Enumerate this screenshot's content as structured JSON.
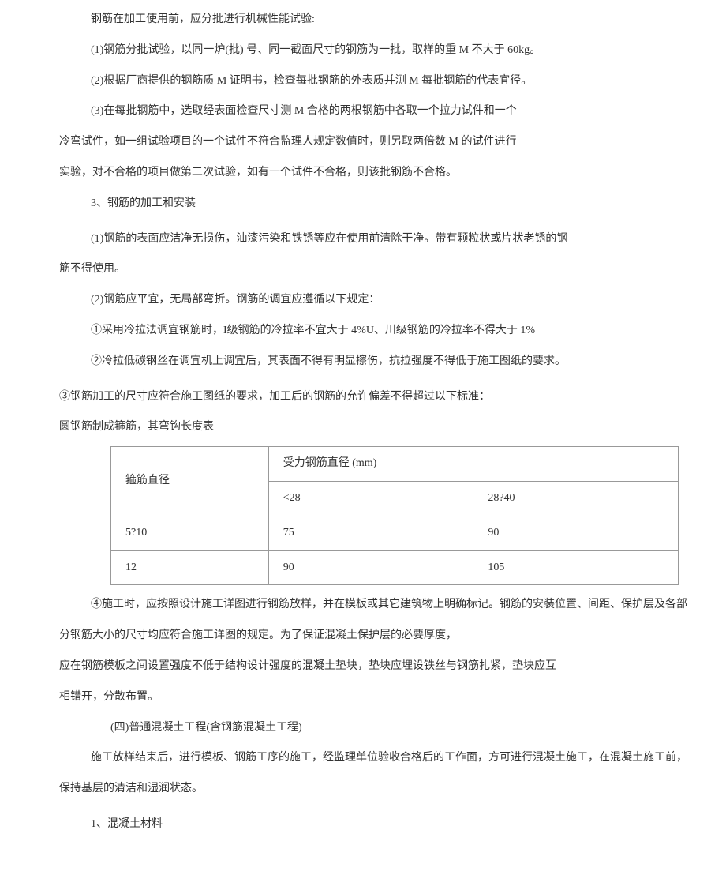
{
  "p1": "钢筋在加工使用前，应分批进行机械性能试验:",
  "p2": "(1)钢筋分批试验，以同一炉(批) 号、同一截面尺寸的钢筋为一批，取样的重 M 不大于 60kg。",
  "p3": "(2)根据厂商提供的钢筋质 M 证明书，检查每批钢筋的外表质并测 M 每批钢筋的代表宜径。",
  "p4": "(3)在每批钢筋中，选取经表面检查尺寸测 M 合格的两根钢筋中各取一个拉力试件和一个",
  "p5": "冷弯试件，如一组试验项目的一个试件不符合监理人规定数值时，则另取两倍数 M 的试件进行",
  "p6": "实验，对不合格的项目做第二次试验，如有一个试件不合格，则该批钢筋不合格。",
  "p7": "3、钢筋的加工和安装",
  "p8": "(1)钢筋的表面应洁净无损伤，油漆污染和铁锈等应在使用前清除干净。带有颗粒状或片状老锈的钢",
  "p8b": "筋不得使用。",
  "p9": "(2)钢筋应平宜，无局部弯折。钢筋的调宜应遵循以下规定：",
  "p10": "①采用冷拉法调宜钢筋时，I级钢筋的冷拉率不宜大于 4%U、川级钢筋的冷拉率不得大于 1%",
  "p11": "②冷拉低碳钢丝在调宜机上调宜后，其表面不得有明显擦伤，抗拉强度不得低于施工图纸的要求。",
  "p12": "③钢筋加工的尺寸应符合施工图纸的要求，加工后的钢筋的允许偏差不得超过以下标准：",
  "p13": "圆钢筋制成箍筋，其弯钩长度表",
  "table": {
    "header1": "箍筋直径",
    "header2": "受力钢筋直径 (mm)",
    "sub1": "<28",
    "sub2": "28?40",
    "row1_label": "5?10",
    "row1_col1": "75",
    "row1_col2": "90",
    "row2_label": "12",
    "row2_col1": "90",
    "row2_col2": "105"
  },
  "p14": "④施工时，应按照设计施工详图进行钢筋放样，并在模板或其它建筑物上明确标记。钢筋的安装位置、间距、保护层及各部",
  "p14b": "分钢筋大小的尺寸均应符合施工详图的规定。为了保证混凝土保护层的必要厚度，",
  "p15": "应在钢筋模板之间设置强度不低于结构设计强度的混凝土垫块，垫块应埋设铁丝与钢筋扎紧，垫块应互",
  "p16": "相错开，分散布置。",
  "p17": "(四)普通混凝土工程(含钢筋混凝土工程)",
  "p18": "施工放样结束后，进行模板、钢筋工序的施工，经监理单位验收合格后的工作面，方可进行混凝土施工，在混凝土施工前，",
  "p18b": "保持基层的清洁和湿润状态。",
  "p19": "1、混凝土材料"
}
